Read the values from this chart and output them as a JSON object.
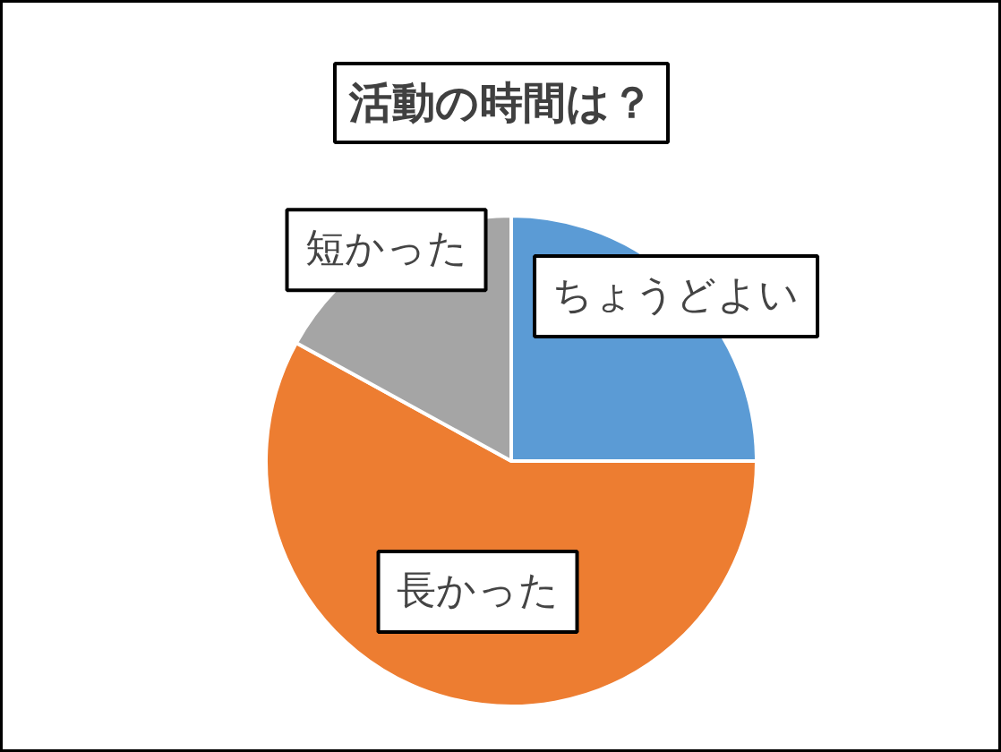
{
  "chart_data": {
    "type": "pie",
    "title": "活動の時間は？",
    "categories": [
      "ちょうどよい",
      "長かった",
      "短かった"
    ],
    "values": [
      25,
      58,
      17
    ],
    "colors": [
      "#5b9bd5",
      "#ed7d31",
      "#a5a5a5"
    ]
  }
}
